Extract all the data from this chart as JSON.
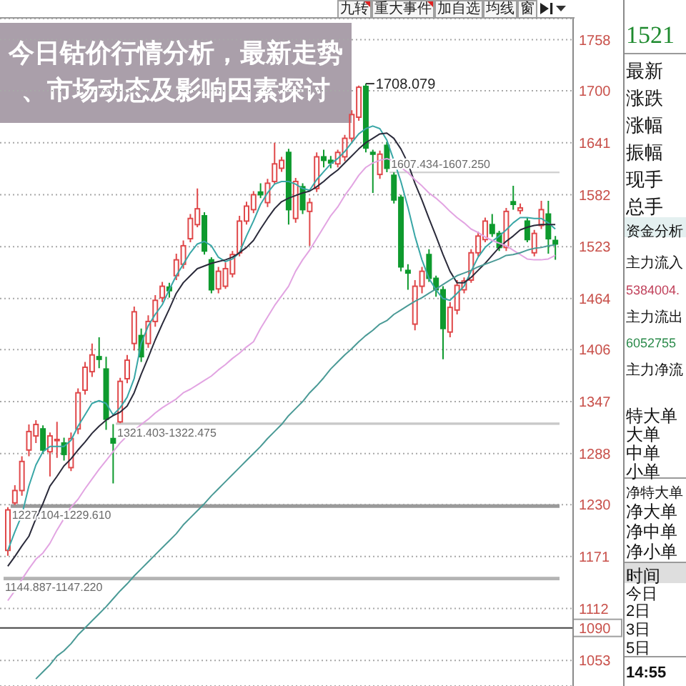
{
  "chart_data": [
    {
      "type": "candlestick",
      "title": "今日钴价行情分析，最新走势、市场动态及影响因素探讨",
      "categories": [
        null,
        null,
        null,
        null,
        null,
        null,
        null,
        null,
        null,
        null,
        null,
        null,
        null,
        null,
        null,
        null,
        null,
        null,
        null,
        null,
        null,
        null,
        null,
        null,
        null,
        null,
        null,
        null,
        null,
        null,
        null,
        null,
        null,
        null,
        null,
        null,
        null,
        null,
        null,
        null,
        null,
        null,
        null,
        null,
        null,
        null,
        null,
        null,
        null,
        null,
        null,
        null,
        null,
        null,
        null,
        null,
        null,
        null,
        null,
        null,
        null,
        null,
        null,
        null,
        null,
        null,
        null,
        null,
        null,
        null,
        null,
        null,
        null,
        null,
        null,
        null,
        null,
        null,
        null
      ],
      "ohlc": [
        [
          1178,
          1227.104,
          1172,
          1224
        ],
        [
          1232,
          1252,
          1229.61,
          1246
        ],
        [
          1246,
          1285,
          1240,
          1279
        ],
        [
          1292,
          1321,
          1285,
          1313
        ],
        [
          1308,
          1326,
          1300,
          1321
        ],
        [
          1316,
          1320,
          1288,
          1292
        ],
        [
          1290,
          1312,
          1262,
          1308
        ],
        [
          1303,
          1324,
          1283,
          1304
        ],
        [
          1300,
          1306,
          1280,
          1287
        ],
        [
          1272,
          1312,
          1268,
          1305
        ],
        [
          1316,
          1362,
          1310,
          1357
        ],
        [
          1360,
          1392,
          1355,
          1386
        ],
        [
          1381,
          1413,
          1375,
          1400
        ],
        [
          1398,
          1420,
          1385,
          1395
        ],
        [
          1384,
          1398,
          1315,
          1327
        ],
        [
          1305,
          1321.403,
          1254,
          1300
        ],
        [
          1324,
          1374,
          1322.475,
          1370
        ],
        [
          1373,
          1400,
          1368,
          1394
        ],
        [
          1413,
          1455,
          1405,
          1449
        ],
        [
          1422,
          1430,
          1392,
          1398
        ],
        [
          1413,
          1445,
          1408,
          1438
        ],
        [
          1438,
          1468,
          1432,
          1462
        ],
        [
          1465,
          1483,
          1460,
          1478
        ],
        [
          1477,
          1482,
          1465,
          1473
        ],
        [
          1490,
          1515,
          1485,
          1508
        ],
        [
          1503,
          1530,
          1498,
          1524
        ],
        [
          1532,
          1560,
          1528,
          1555
        ],
        [
          1548,
          1589,
          1545,
          1566
        ],
        [
          1558,
          1562,
          1514,
          1518
        ],
        [
          1508,
          1511,
          1470,
          1474
        ],
        [
          1475,
          1500,
          1470,
          1495
        ],
        [
          1478,
          1505,
          1475,
          1498
        ],
        [
          1492,
          1518,
          1488,
          1514
        ],
        [
          1516,
          1558,
          1512,
          1552
        ],
        [
          1552,
          1574,
          1548,
          1569
        ],
        [
          1565,
          1586,
          1561,
          1582
        ],
        [
          1585,
          1595,
          1578,
          1582
        ],
        [
          1573,
          1600,
          1568,
          1595
        ],
        [
          1597,
          1641,
          1594,
          1617
        ],
        [
          1612,
          1625,
          1608,
          1621
        ],
        [
          1630,
          1634,
          1548,
          1565
        ],
        [
          1555,
          1601,
          1550,
          1597
        ],
        [
          1591,
          1595,
          1560,
          1565
        ],
        [
          1563,
          1578,
          1524,
          1573
        ],
        [
          1589,
          1630,
          1585,
          1625
        ],
        [
          1625,
          1633,
          1613,
          1621
        ],
        [
          1621,
          1626,
          1612,
          1618
        ],
        [
          1617,
          1633,
          1613,
          1630
        ],
        [
          1625,
          1650,
          1620,
          1646
        ],
        [
          1646,
          1678,
          1641,
          1673
        ],
        [
          1670,
          1706,
          1666,
          1704
        ],
        [
          1705,
          1708.079,
          1630,
          1635
        ],
        [
          1630,
          1633,
          1584,
          1628
        ],
        [
          1605,
          1632,
          1600,
          1628
        ],
        [
          1638,
          1642,
          1607.434,
          1612
        ],
        [
          1604,
          1607.25,
          1572,
          1576
        ],
        [
          1579,
          1582,
          1495,
          1500
        ],
        [
          1496,
          1503,
          1474,
          1493
        ],
        [
          1435,
          1485,
          1428,
          1478
        ],
        [
          1478,
          1500,
          1470,
          1495
        ],
        [
          1514,
          1520,
          1483,
          1487
        ],
        [
          1487,
          1490,
          1466,
          1474
        ],
        [
          1474,
          1478,
          1395,
          1430
        ],
        [
          1426,
          1460,
          1420,
          1454
        ],
        [
          1451,
          1485,
          1446,
          1479
        ],
        [
          1474,
          1488,
          1470,
          1484
        ],
        [
          1485,
          1520,
          1482,
          1516
        ],
        [
          1516,
          1540,
          1512,
          1535
        ],
        [
          1531,
          1556,
          1528,
          1552
        ],
        [
          1548,
          1560,
          1534,
          1538
        ],
        [
          1538,
          1541,
          1518,
          1522
        ],
        [
          1522,
          1567,
          1518,
          1563
        ],
        [
          1574,
          1592,
          1565,
          1571
        ],
        [
          1564,
          1572,
          1560,
          1567
        ],
        [
          1552,
          1556,
          1528,
          1531
        ],
        [
          1516,
          1542,
          1512,
          1538
        ],
        [
          1547,
          1575,
          1543,
          1565
        ],
        [
          1560,
          1575,
          1515,
          1532
        ],
        [
          1530,
          1535,
          1508,
          1526
        ]
      ],
      "colors": [
        "#e0484a",
        "#e0484a",
        "#e0484a",
        "#e0484a",
        "#e0484a",
        "#0e9a2e",
        "#e0484a",
        "#e0484a",
        "#0e9a2e",
        "#e0484a",
        "#e0484a",
        "#e0484a",
        "#e0484a",
        "#0e9a2e",
        "#0e9a2e",
        "#0e9a2e",
        "#e0484a",
        "#e0484a",
        "#e0484a",
        "#0e9a2e",
        "#e0484a",
        "#e0484a",
        "#e0484a",
        "#0e9a2e",
        "#e0484a",
        "#e0484a",
        "#e0484a",
        "#e0484a",
        "#0e9a2e",
        "#0e9a2e",
        "#e0484a",
        "#e0484a",
        "#e0484a",
        "#e0484a",
        "#e0484a",
        "#e0484a",
        "#0e9a2e",
        "#e0484a",
        "#e0484a",
        "#e0484a",
        "#0e9a2e",
        "#e0484a",
        "#0e9a2e",
        "#e0484a",
        "#e0484a",
        "#0e9a2e",
        "#0e9a2e",
        "#e0484a",
        "#e0484a",
        "#e0484a",
        "#e0484a",
        "#0e9a2e",
        "#0e9a2e",
        "#e0484a",
        "#0e9a2e",
        "#0e9a2e",
        "#0e9a2e",
        "#0e9a2e",
        "#e0484a",
        "#e0484a",
        "#0e9a2e",
        "#0e9a2e",
        "#0e9a2e",
        "#e0484a",
        "#e0484a",
        "#e0484a",
        "#e0484a",
        "#e0484a",
        "#e0484a",
        "#0e9a2e",
        "#0e9a2e",
        "#e0484a",
        "#0e9a2e",
        "#e0484a",
        "#0e9a2e",
        "#e0484a",
        "#e0484a",
        "#0e9a2e",
        "#0e9a2e"
      ],
      "series": [
        {
          "type": "line",
          "color": "#38a6a6",
          "values": [
            1178,
            1199,
            1218,
            1251,
            1275,
            1290,
            1296,
            1296,
            1296,
            1303,
            1319,
            1332,
            1345,
            1348,
            1345,
            1332,
            1340,
            1352,
            1373,
            1413,
            1433,
            1446,
            1457,
            1474,
            1490,
            1503,
            1516,
            1526,
            1529,
            1524,
            1511,
            1506,
            1509,
            1516,
            1535,
            1552,
            1571,
            1584,
            1594,
            1597,
            1597,
            1594,
            1589,
            1587,
            1599,
            1608,
            1617,
            1623,
            1631,
            1641,
            1651,
            1657,
            1660,
            1657,
            1644,
            1621,
            1597,
            1568,
            1535,
            1508,
            1487,
            1474,
            1464,
            1462,
            1470,
            1478,
            1495,
            1511,
            1522,
            1529,
            1535,
            1542,
            1550,
            1556,
            1556,
            1555,
            1555,
            1550,
            1543
          ]
        },
        {
          "type": "line",
          "color": "#2a2a3a",
          "values": [
            1160,
            1171,
            1183,
            1194,
            1214,
            1231,
            1251,
            1262,
            1274,
            1282,
            1292,
            1301,
            1311,
            1319,
            1326,
            1331,
            1335,
            1342,
            1357,
            1378,
            1397,
            1417,
            1435,
            1452,
            1470,
            1482,
            1490,
            1498,
            1501,
            1504,
            1506,
            1508,
            1511,
            1516,
            1522,
            1530,
            1543,
            1555,
            1566,
            1574,
            1578,
            1581,
            1584,
            1586,
            1591,
            1597,
            1604,
            1610,
            1618,
            1626,
            1634,
            1641,
            1646,
            1651,
            1652,
            1646,
            1634,
            1618,
            1595,
            1576,
            1555,
            1535,
            1514,
            1495,
            1482,
            1482,
            1488,
            1496,
            1504,
            1513,
            1522,
            1529,
            1535,
            1542,
            1545,
            1547,
            1548,
            1548,
            1548
          ]
        },
        {
          "type": "line",
          "color": "#e2a4e2",
          "values": [
            1121,
            1132,
            1145,
            1157,
            1168,
            1175,
            1186,
            1201,
            1214,
            1227,
            1236,
            1248,
            1259,
            1270,
            1280,
            1290,
            1300,
            1308,
            1314,
            1321,
            1327,
            1334,
            1340,
            1345,
            1350,
            1357,
            1361,
            1366,
            1371,
            1376,
            1383,
            1389,
            1396,
            1402,
            1409,
            1415,
            1430,
            1443,
            1456,
            1467,
            1478,
            1495,
            1508,
            1519,
            1532,
            1545,
            1558,
            1568,
            1581,
            1592,
            1604,
            1613,
            1618,
            1621,
            1623,
            1620,
            1613,
            1607,
            1599,
            1592,
            1584,
            1578,
            1571,
            1563,
            1556,
            1550,
            1543,
            1539,
            1534,
            1530,
            1527,
            1524,
            1519,
            1514,
            1509,
            1508,
            1508,
            1509,
            1513
          ]
        },
        {
          "type": "line",
          "color": "#4a9a96",
          "values": [
            null,
            null,
            null,
            null,
            1032,
            1040,
            1048,
            1058,
            1064,
            1072,
            1082,
            1090,
            1098,
            1106,
            1114,
            1123,
            1132,
            1140,
            1149,
            1157,
            1165,
            1173,
            1181,
            1189,
            1197,
            1207,
            1215,
            1223,
            1231,
            1240,
            1248,
            1256,
            1264,
            1272,
            1280,
            1288,
            1296,
            1305,
            1313,
            1321,
            1331,
            1339,
            1347,
            1357,
            1365,
            1374,
            1384,
            1392,
            1400,
            1407,
            1415,
            1422,
            1428,
            1435,
            1439,
            1446,
            1451,
            1456,
            1461,
            1465,
            1470,
            1475,
            1480,
            1485,
            1490,
            1493,
            1496,
            1500,
            1503,
            1506,
            1509,
            1513,
            1514,
            1516,
            1519,
            1521,
            1522,
            1524,
            1525
          ]
        }
      ],
      "ylim": [
        1024,
        1782
      ],
      "yticks": [
        1053,
        1112,
        1171,
        1230,
        1288,
        1347,
        1406,
        1464,
        1523,
        1582,
        1641,
        1700,
        1758
      ],
      "grid": "y",
      "tick_labels": "y",
      "ref_lines": [
        {
          "axis": "y",
          "value": 1090,
          "label": "1090",
          "color": "#444444"
        }
      ],
      "bands": [
        {
          "axis": "y",
          "from": 1607.434,
          "to": 1607.25,
          "label": "1607.434-1607.250",
          "color": "#cfcfcf"
        },
        {
          "axis": "y",
          "from": 1321.403,
          "to": 1322.475,
          "label": "1321.403-1322.475",
          "color": "#c8c8c8"
        },
        {
          "axis": "y",
          "from": 1227.104,
          "to": 1229.61,
          "label": "1227.104-1229.610",
          "color": "#9a9a9a"
        },
        {
          "axis": "y",
          "from": 1144.887,
          "to": 1147.22,
          "label": "1144.887-1147.220",
          "color": "#b4b4b4"
        }
      ],
      "annotations": [
        "1708.079"
      ]
    },
    {
      "type": "other",
      "annotations": [
        "九转",
        "重大事件",
        "加自选",
        "均线",
        "窗"
      ]
    },
    {
      "type": "other",
      "annotations": [
        "1521",
        "最新",
        "涨跌",
        "涨幅",
        "振幅",
        "现手",
        "总手",
        "资金分析",
        "主力流入",
        "5384004.",
        "主力流出",
        "6052755",
        "主力净流",
        "特大单",
        "大单",
        "中单",
        "小单",
        "净特大单",
        "净大单",
        "净中单",
        "净小单",
        "时间",
        "今日",
        "2日",
        "3日",
        "5日",
        "14:55"
      ],
      "colors": [
        "#1e8a2e",
        null,
        null,
        null,
        null,
        null,
        null,
        null,
        null,
        "#c0405a",
        null,
        "#2a8a4a",
        null,
        null,
        null,
        null,
        null,
        null,
        null,
        null,
        null,
        null,
        null,
        null,
        null,
        null,
        null
      ]
    }
  ]
}
